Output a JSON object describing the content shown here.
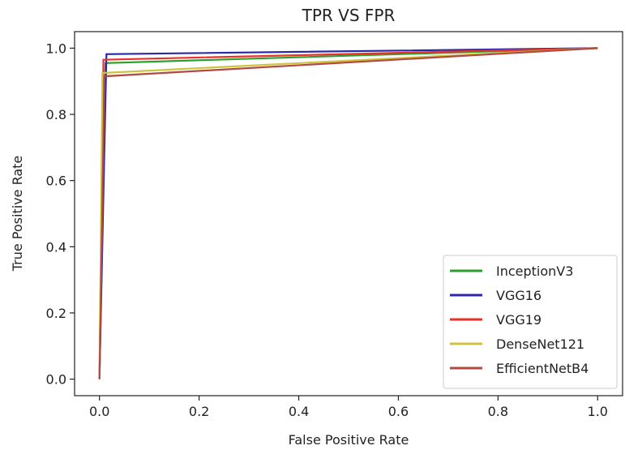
{
  "chart_data": {
    "type": "line",
    "title": "TPR VS FPR",
    "xlabel": "False Positive Rate",
    "ylabel": "True Positive Rate",
    "xlim": [
      -0.05,
      1.05
    ],
    "ylim": [
      -0.05,
      1.05
    ],
    "xticks": [
      0.0,
      0.2,
      0.4,
      0.6,
      0.8,
      1.0
    ],
    "yticks": [
      0.0,
      0.2,
      0.4,
      0.6,
      0.8,
      1.0
    ],
    "xtick_labels": [
      "0.0",
      "0.2",
      "0.4",
      "0.6",
      "0.8",
      "1.0"
    ],
    "ytick_labels": [
      "0.0",
      "0.2",
      "0.4",
      "0.6",
      "0.8",
      "1.0"
    ],
    "grid": false,
    "legend_position": "bottom-right",
    "series": [
      {
        "name": "InceptionV3",
        "color": "#2ca02c",
        "x": [
          0.0,
          0.012,
          1.0
        ],
        "y": [
          0.0,
          0.955,
          1.0
        ]
      },
      {
        "name": "VGG16",
        "color": "#2a2aa8",
        "x": [
          0.0,
          0.014,
          1.0
        ],
        "y": [
          0.0,
          0.982,
          1.0
        ]
      },
      {
        "name": "VGG19",
        "color": "#e8322a",
        "x": [
          0.0,
          0.008,
          1.0
        ],
        "y": [
          0.0,
          0.965,
          1.0
        ]
      },
      {
        "name": "DenseNet121",
        "color": "#cfc23d",
        "x": [
          0.0,
          0.006,
          1.0
        ],
        "y": [
          0.0,
          0.925,
          1.0
        ]
      },
      {
        "name": "EfficientNetB4",
        "color": "#b04a42",
        "x": [
          0.0,
          0.01,
          1.0
        ],
        "y": [
          0.0,
          0.915,
          1.0
        ]
      }
    ]
  }
}
